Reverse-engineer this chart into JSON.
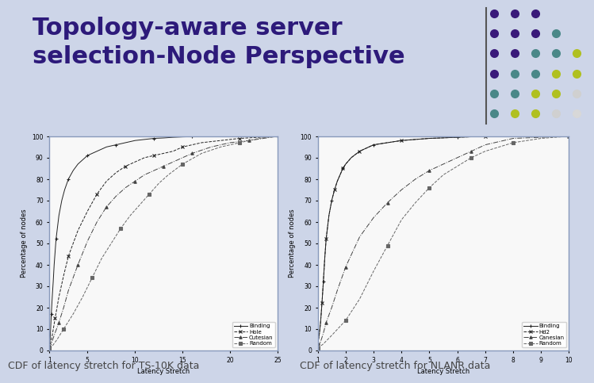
{
  "title_line1": "Topology-aware server",
  "title_line2": "selection-Node Perspective",
  "title_color": "#2d1a7a",
  "title_fontsize": 22,
  "background_color": "#d8e0ec",
  "slide_bg": "#cdd5e8",
  "chart1_caption": "CDF of latency stretch for TS-10K data",
  "chart2_caption": "CDF of latency stretch for NLANR data",
  "caption_fontsize": 9,
  "dot_cols": [
    "#3d1a7a",
    "#3d1a7a",
    "#3d1a7a",
    "#4a8a8a",
    "#b8c82a",
    "#cccccc"
  ],
  "dot_rows_pattern": [
    [
      "#3d1a7a",
      "#3d1a7a",
      "#3d1a7a",
      "none",
      "none",
      "none"
    ],
    [
      "#3d1a7a",
      "#3d1a7a",
      "#3d1a7a",
      "#4a8a8a",
      "none",
      "none"
    ],
    [
      "#3d1a7a",
      "#3d1a7a",
      "#4a8a8a",
      "#4a8a8a",
      "#b8c82a",
      "none"
    ],
    [
      "#3d1a7a",
      "#4a8a8a",
      "#4a8a8a",
      "#b8c82a",
      "#b8c82a",
      "none"
    ],
    [
      "#4a8a8a",
      "#4a8a8a",
      "#b8c82a",
      "#b8c82a",
      "#cccccc",
      "none"
    ],
    [
      "#4a8a8a",
      "#b8c82a",
      "#b8c82a",
      "#cccccc",
      "#cccccc",
      "none"
    ]
  ],
  "chart1": {
    "xlabel": "Latency Stretch",
    "ylabel": "Percentage of nodes",
    "xlim": [
      1,
      25
    ],
    "ylim": [
      0,
      100
    ],
    "xticks": [
      1,
      5,
      10,
      15,
      20,
      25
    ],
    "yticks": [
      0,
      10,
      20,
      30,
      40,
      50,
      60,
      70,
      80,
      90,
      100
    ],
    "legend": [
      "Binding",
      "Hole",
      "Cutesian",
      "Random"
    ],
    "series": {
      "Binding": {
        "x": [
          1.0,
          1.05,
          1.1,
          1.15,
          1.2,
          1.3,
          1.4,
          1.5,
          1.7,
          2.0,
          2.3,
          2.6,
          3.0,
          3.5,
          4.0,
          4.5,
          5.0,
          5.5,
          6.0,
          7.0,
          8.0,
          9.0,
          10.0,
          11.0,
          12.0,
          13.0,
          14.0,
          15.0,
          16.0,
          18.0,
          20.0,
          22.0,
          25.0
        ],
        "y": [
          2,
          4,
          7,
          12,
          17,
          25,
          32,
          40,
          52,
          63,
          70,
          75,
          80,
          84,
          87,
          89,
          91,
          92,
          93,
          95,
          96,
          97,
          98,
          98.5,
          99,
          99.2,
          99.5,
          99.7,
          99.8,
          100,
          100,
          100,
          100
        ],
        "marker": "+",
        "linestyle": "-",
        "color": "#222222"
      },
      "Hole": {
        "x": [
          1.0,
          1.1,
          1.3,
          1.6,
          2.0,
          2.5,
          3.0,
          4.0,
          5.0,
          6.0,
          7.0,
          8.0,
          9.0,
          10.0,
          11.0,
          12.0,
          13.0,
          14.0,
          15.0,
          17.0,
          19.0,
          21.0,
          23.0,
          25.0
        ],
        "y": [
          1,
          3,
          7,
          15,
          25,
          35,
          44,
          56,
          65,
          73,
          79,
          83,
          86,
          88,
          90,
          91,
          92,
          93,
          95,
          97,
          98,
          99,
          99.5,
          100
        ],
        "marker": "x",
        "linestyle": "--",
        "color": "#222222"
      },
      "Cutesian": {
        "x": [
          1.0,
          1.2,
          1.5,
          2.0,
          2.5,
          3.0,
          4.0,
          5.0,
          6.0,
          7.0,
          8.0,
          9.0,
          10.0,
          11.0,
          12.0,
          13.0,
          14.0,
          15.0,
          16.0,
          18.0,
          20.0,
          22.0,
          25.0
        ],
        "y": [
          1,
          3,
          7,
          13,
          20,
          28,
          40,
          51,
          60,
          67,
          72,
          76,
          79,
          82,
          84,
          86,
          88,
          90,
          92,
          95,
          97,
          98,
          100
        ],
        "marker": "^",
        "linestyle": "-.",
        "color": "#444444"
      },
      "Random": {
        "x": [
          1.0,
          1.3,
          1.8,
          2.5,
          3.5,
          4.5,
          5.5,
          6.5,
          7.5,
          8.5,
          9.5,
          10.5,
          11.5,
          12.5,
          13.5,
          15.0,
          17.0,
          19.0,
          21.0,
          23.0,
          25.0
        ],
        "y": [
          1,
          2,
          5,
          10,
          17,
          25,
          34,
          43,
          50,
          57,
          63,
          68,
          73,
          78,
          82,
          87,
          92,
          95,
          97,
          99,
          100
        ],
        "marker": "s",
        "linestyle": "--",
        "color": "#666666"
      }
    }
  },
  "chart2": {
    "xlabel": "Latency Stretch",
    "ylabel": "Percentage of nodes",
    "xlim": [
      1,
      10
    ],
    "ylim": [
      0,
      100
    ],
    "xticks": [
      1,
      2,
      3,
      4,
      5,
      6,
      7,
      8,
      9,
      10
    ],
    "yticks": [
      0,
      10,
      20,
      30,
      40,
      50,
      60,
      70,
      80,
      90,
      100
    ],
    "legend": [
      "Binding",
      "Hd2",
      "Canesian",
      "Random"
    ],
    "series": {
      "Binding": {
        "x": [
          1.0,
          1.05,
          1.1,
          1.15,
          1.2,
          1.25,
          1.3,
          1.4,
          1.5,
          1.6,
          1.7,
          1.8,
          1.9,
          2.0,
          2.2,
          2.5,
          3.0,
          3.5,
          4.0,
          5.0,
          6.0,
          7.0,
          8.0,
          10.0
        ],
        "y": [
          3,
          7,
          13,
          22,
          32,
          43,
          52,
          63,
          70,
          75,
          79,
          82,
          85,
          87,
          90,
          93,
          96,
          97,
          98,
          99,
          99.5,
          100,
          100,
          100
        ],
        "marker": "+",
        "linestyle": "-",
        "color": "#222222"
      },
      "Hd2": {
        "x": [
          1.0,
          1.05,
          1.1,
          1.15,
          1.2,
          1.25,
          1.3,
          1.4,
          1.5,
          1.6,
          1.7,
          1.8,
          1.9,
          2.0,
          2.2,
          2.5,
          3.0,
          3.5,
          4.0,
          5.0,
          6.0,
          7.0,
          10.0
        ],
        "y": [
          3,
          7,
          13,
          22,
          32,
          43,
          52,
          63,
          70,
          75,
          79,
          82,
          85,
          87,
          90,
          93,
          96,
          97,
          98,
          99,
          99.5,
          100,
          100
        ],
        "marker": "x",
        "linestyle": "--",
        "color": "#222222"
      },
      "Canesian": {
        "x": [
          1.0,
          1.1,
          1.2,
          1.3,
          1.5,
          1.7,
          2.0,
          2.5,
          3.0,
          3.5,
          4.0,
          4.5,
          5.0,
          5.5,
          6.0,
          6.5,
          7.0,
          8.0,
          10.0
        ],
        "y": [
          1,
          4,
          8,
          13,
          20,
          28,
          39,
          53,
          62,
          69,
          75,
          80,
          84,
          87,
          90,
          93,
          96,
          99,
          100
        ],
        "marker": "^",
        "linestyle": "-.",
        "color": "#444444"
      },
      "Random": {
        "x": [
          1.0,
          1.2,
          1.5,
          2.0,
          2.5,
          3.0,
          3.5,
          4.0,
          4.5,
          5.0,
          5.5,
          6.0,
          6.5,
          7.0,
          7.5,
          8.0,
          9.0,
          10.0
        ],
        "y": [
          1,
          3,
          7,
          14,
          24,
          37,
          49,
          61,
          69,
          76,
          82,
          86,
          90,
          93,
          95,
          97,
          99,
          100
        ],
        "marker": "s",
        "linestyle": "--",
        "color": "#666666"
      }
    }
  }
}
